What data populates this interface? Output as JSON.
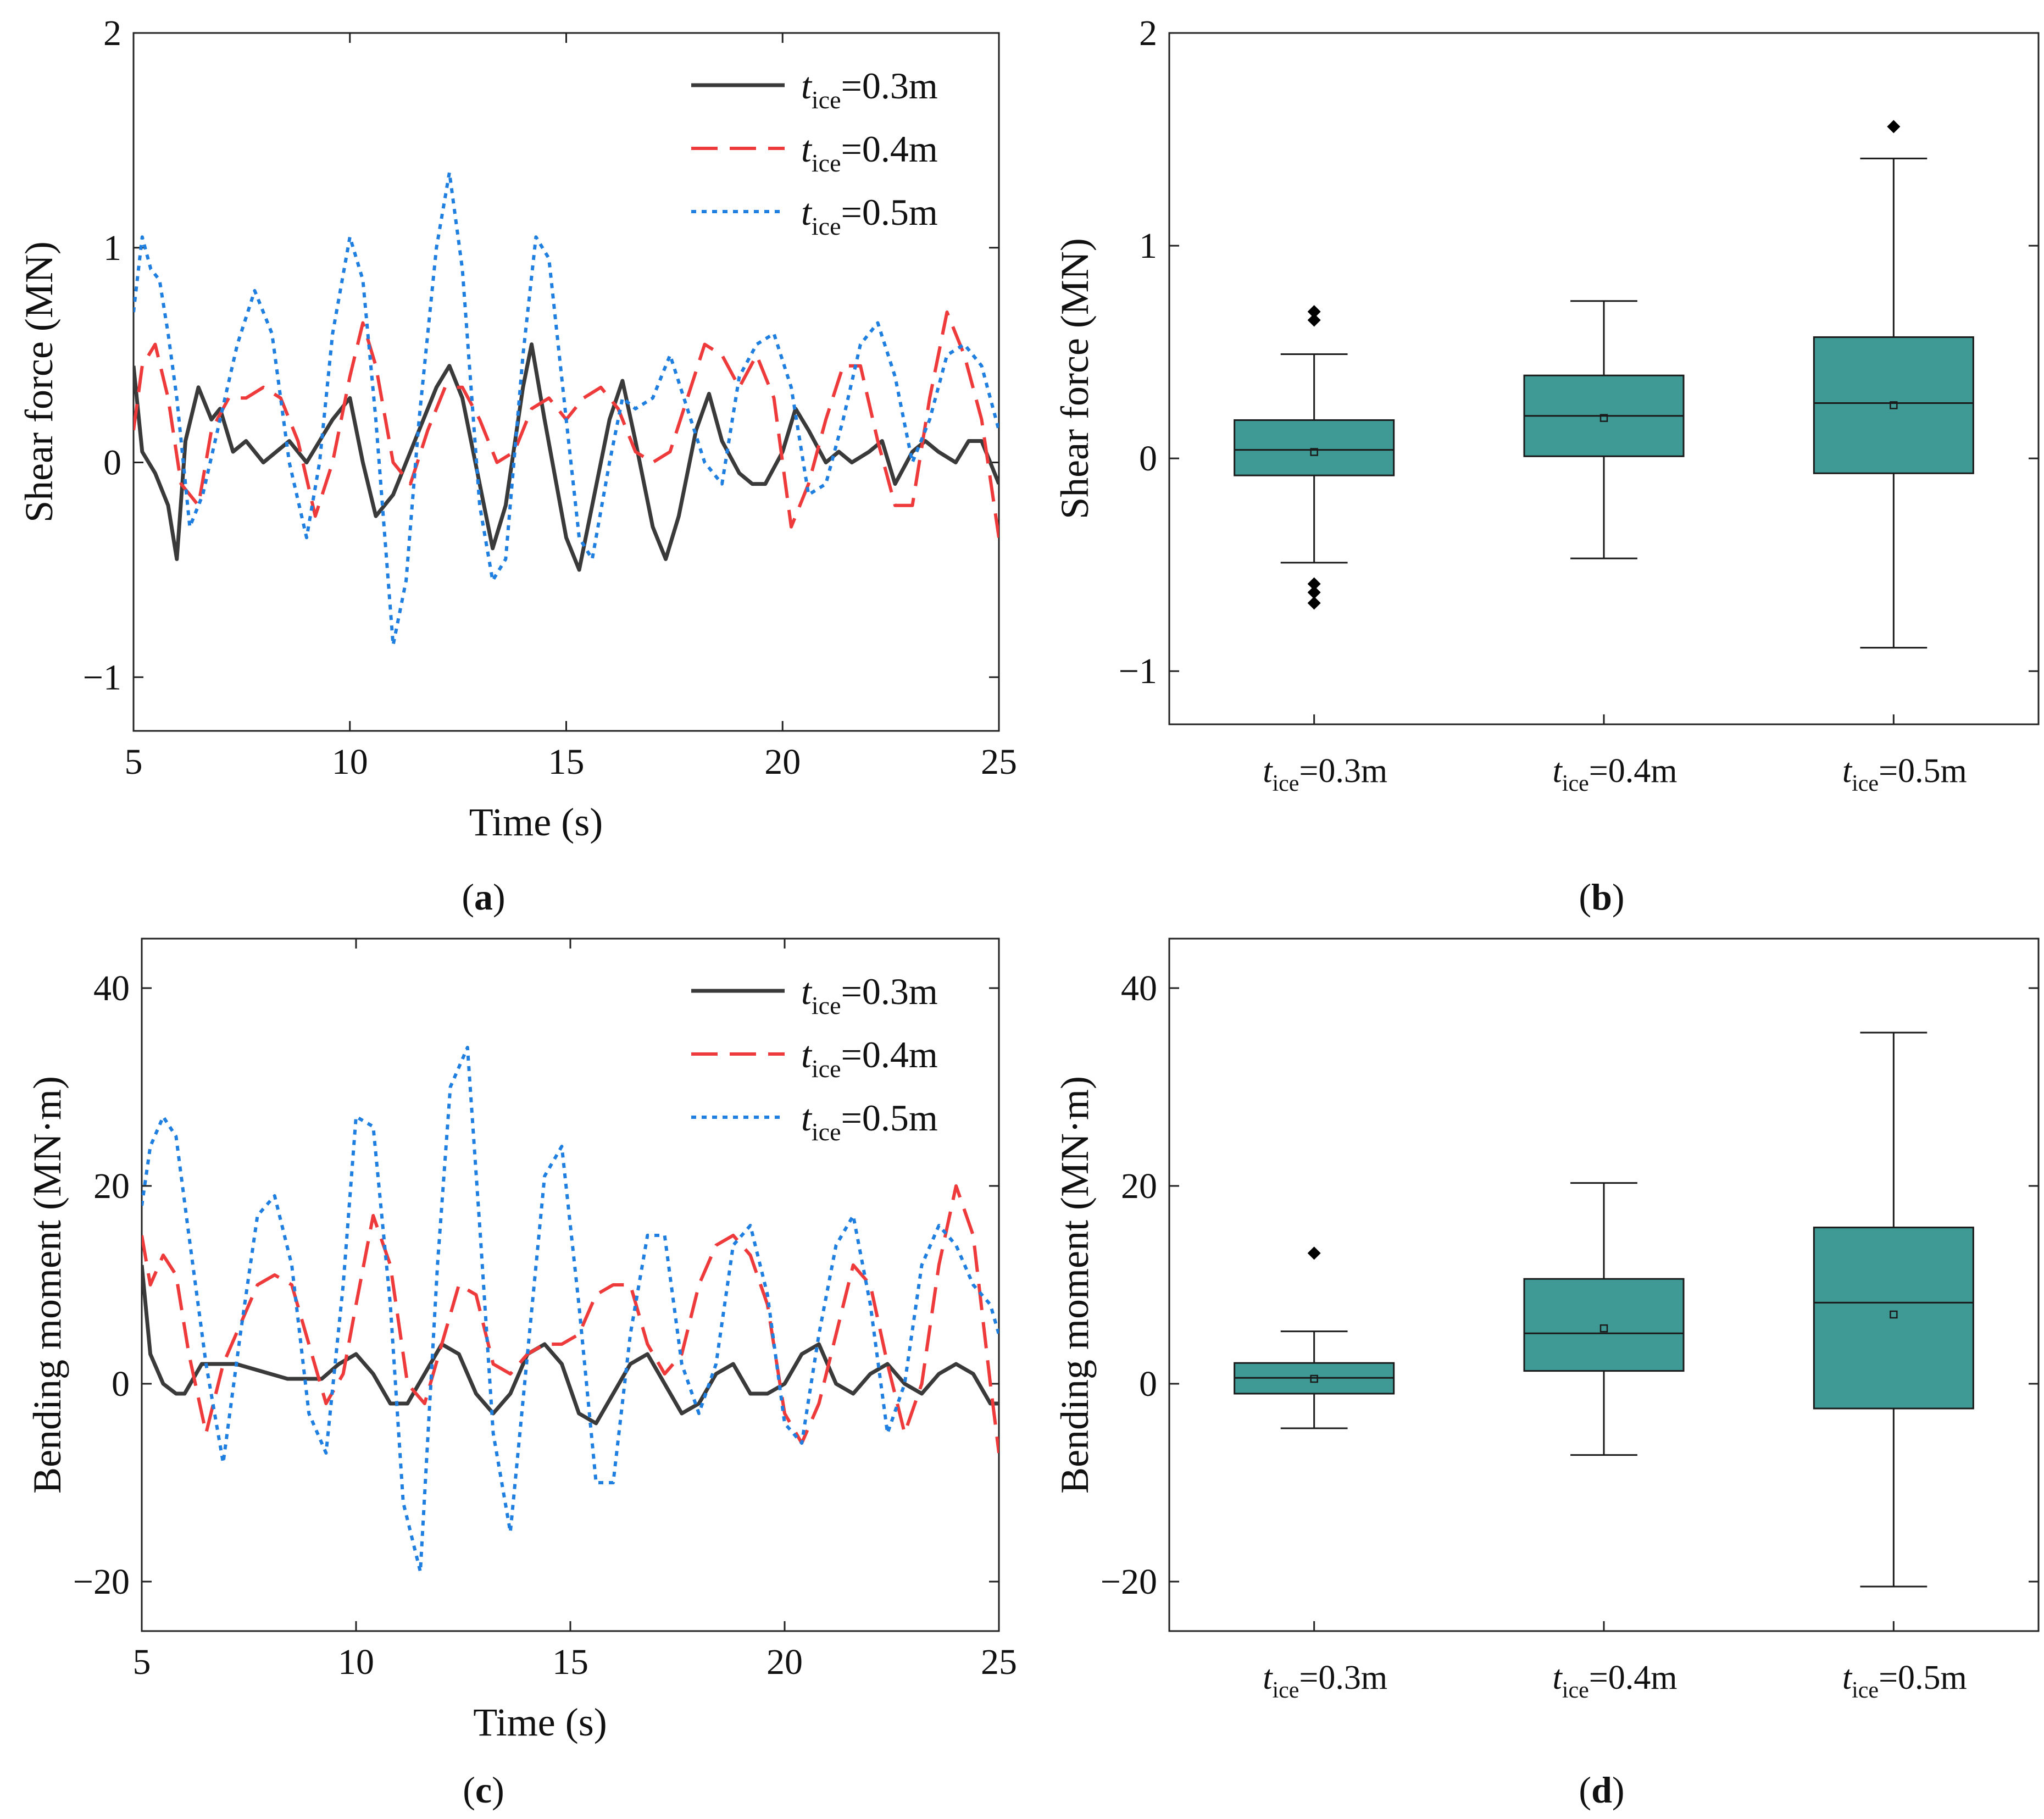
{
  "figure": {
    "panel_labels": [
      {
        "open": "(",
        "letter": "a",
        "close": ")"
      },
      {
        "open": "(",
        "letter": "b",
        "close": ")"
      },
      {
        "open": "(",
        "letter": "c",
        "close": ")"
      },
      {
        "open": "(",
        "letter": "d",
        "close": ")"
      }
    ]
  },
  "colors": {
    "series": [
      "#3a3a3a",
      "#ee3a3a",
      "#1f7fe0"
    ],
    "box_fill": "#3f9a96",
    "box_stroke": "#1a1a1a",
    "axis": "#222222"
  },
  "chart_data": [
    {
      "id": "a",
      "type": "line",
      "xlabel": "Time (s)",
      "ylabel": "Shear force (MN)",
      "xlim": [
        5,
        25
      ],
      "ylim": [
        -1.25,
        2
      ],
      "xticks": [
        5,
        10,
        15,
        20,
        25
      ],
      "xtick_labels": [
        "5",
        "10",
        "15",
        "20",
        "25"
      ],
      "yticks": [
        -1,
        0,
        1,
        2
      ],
      "ytick_labels": [
        "−1",
        "0",
        "1",
        "2"
      ],
      "legend_position": "top-right",
      "series": [
        {
          "legend_var": "t",
          "legend_sub": "ice",
          "legend_value": "=0.3m",
          "style": "solid",
          "x": [
            5,
            5.2,
            5.5,
            5.8,
            6.0,
            6.2,
            6.5,
            6.8,
            7.0,
            7.3,
            7.6,
            8.0,
            8.3,
            8.6,
            9.0,
            9.3,
            9.6,
            10.0,
            10.3,
            10.6,
            11.0,
            11.3,
            11.6,
            12.0,
            12.3,
            12.6,
            13.0,
            13.3,
            13.6,
            14.0,
            14.2,
            14.5,
            15.0,
            15.3,
            15.6,
            16.0,
            16.3,
            16.6,
            17.0,
            17.3,
            17.6,
            18.0,
            18.3,
            18.6,
            19.0,
            19.3,
            19.6,
            20.0,
            20.3,
            20.6,
            21.0,
            21.3,
            21.6,
            22.0,
            22.3,
            22.6,
            23.0,
            23.3,
            23.6,
            24.0,
            24.3,
            24.6,
            25.0
          ],
          "y": [
            0.45,
            0.05,
            -0.05,
            -0.2,
            -0.45,
            0.1,
            0.35,
            0.2,
            0.25,
            0.05,
            0.1,
            0.0,
            0.05,
            0.1,
            0.0,
            0.1,
            0.2,
            0.3,
            0.0,
            -0.25,
            -0.15,
            0.0,
            0.15,
            0.35,
            0.45,
            0.3,
            -0.1,
            -0.4,
            -0.2,
            0.35,
            0.55,
            0.2,
            -0.35,
            -0.5,
            -0.2,
            0.2,
            0.38,
            0.1,
            -0.3,
            -0.45,
            -0.25,
            0.15,
            0.32,
            0.1,
            -0.05,
            -0.1,
            -0.1,
            0.05,
            0.25,
            0.15,
            0.0,
            0.05,
            0.0,
            0.05,
            0.1,
            -0.1,
            0.05,
            0.1,
            0.05,
            0.0,
            0.1,
            0.1,
            -0.1
          ]
        },
        {
          "legend_var": "t",
          "legend_sub": "ice",
          "legend_value": "=0.4m",
          "style": "dashed",
          "x": [
            5,
            5.2,
            5.5,
            5.8,
            6.1,
            6.5,
            6.8,
            7.2,
            7.6,
            8.0,
            8.4,
            8.8,
            9.2,
            9.6,
            10.0,
            10.3,
            10.6,
            11.0,
            11.4,
            11.8,
            12.2,
            12.6,
            13.0,
            13.4,
            13.8,
            14.2,
            14.6,
            15.0,
            15.4,
            15.8,
            16.2,
            16.6,
            17.0,
            17.4,
            17.8,
            18.2,
            18.6,
            19.0,
            19.4,
            19.8,
            20.2,
            20.6,
            21.0,
            21.4,
            21.8,
            22.2,
            22.6,
            23.0,
            23.4,
            23.8,
            24.2,
            24.6,
            25.0
          ],
          "y": [
            0.15,
            0.45,
            0.55,
            0.3,
            -0.1,
            -0.2,
            0.15,
            0.3,
            0.3,
            0.35,
            0.3,
            0.1,
            -0.25,
            0.0,
            0.4,
            0.65,
            0.45,
            0.0,
            -0.1,
            0.15,
            0.35,
            0.35,
            0.2,
            0.0,
            0.05,
            0.25,
            0.3,
            0.2,
            0.3,
            0.35,
            0.25,
            0.05,
            0.0,
            0.05,
            0.3,
            0.55,
            0.5,
            0.35,
            0.5,
            0.3,
            -0.3,
            -0.1,
            0.2,
            0.45,
            0.45,
            0.1,
            -0.2,
            -0.2,
            0.3,
            0.7,
            0.5,
            0.2,
            -0.35
          ]
        },
        {
          "legend_var": "t",
          "legend_sub": "ice",
          "legend_value": "=0.5m",
          "style": "dotted",
          "x": [
            5,
            5.2,
            5.4,
            5.6,
            5.8,
            6.0,
            6.3,
            6.6,
            7.0,
            7.4,
            7.8,
            8.2,
            8.6,
            9.0,
            9.3,
            9.6,
            10.0,
            10.3,
            10.6,
            11.0,
            11.3,
            11.6,
            12.0,
            12.3,
            12.6,
            13.0,
            13.3,
            13.6,
            14.0,
            14.3,
            14.6,
            15.0,
            15.3,
            15.6,
            16.0,
            16.3,
            16.6,
            17.0,
            17.4,
            17.8,
            18.2,
            18.6,
            19.0,
            19.4,
            19.8,
            20.2,
            20.6,
            21.0,
            21.4,
            21.8,
            22.2,
            22.6,
            23.0,
            23.4,
            23.8,
            24.2,
            24.6,
            25.0
          ],
          "y": [
            0.7,
            1.05,
            0.9,
            0.85,
            0.6,
            0.3,
            -0.3,
            -0.15,
            0.2,
            0.55,
            0.8,
            0.6,
            0.0,
            -0.35,
            0.0,
            0.6,
            1.05,
            0.85,
            0.2,
            -0.85,
            -0.55,
            0.2,
            1.0,
            1.35,
            0.9,
            -0.2,
            -0.55,
            -0.45,
            0.5,
            1.05,
            0.95,
            0.2,
            -0.35,
            -0.45,
            0.0,
            0.3,
            0.25,
            0.3,
            0.5,
            0.25,
            0.0,
            -0.1,
            0.4,
            0.55,
            0.6,
            0.35,
            -0.15,
            -0.1,
            0.2,
            0.55,
            0.65,
            0.4,
            0.0,
            0.2,
            0.5,
            0.55,
            0.45,
            0.15
          ]
        }
      ]
    },
    {
      "id": "b",
      "type": "box",
      "ylabel": "Shear force (MN)",
      "ylim": [
        -1.25,
        2
      ],
      "yticks": [
        -1,
        0,
        1,
        2
      ],
      "ytick_labels": [
        "−1",
        "0",
        "1",
        "2"
      ],
      "categories": [
        {
          "var": "t",
          "sub": "ice",
          "value": "=0.3m"
        },
        {
          "var": "t",
          "sub": "ice",
          "value": "=0.4m"
        },
        {
          "var": "t",
          "sub": "ice",
          "value": "=0.5m"
        }
      ],
      "boxes": [
        {
          "whisker_low": -0.49,
          "q1": -0.08,
          "median": 0.04,
          "mean": 0.03,
          "q3": 0.18,
          "whisker_high": 0.49,
          "outliers": [
            0.69,
            0.65,
            -0.59,
            -0.63,
            -0.68
          ]
        },
        {
          "whisker_low": -0.47,
          "q1": 0.01,
          "median": 0.2,
          "mean": 0.19,
          "q3": 0.39,
          "whisker_high": 0.74,
          "outliers": []
        },
        {
          "whisker_low": -0.89,
          "q1": -0.07,
          "median": 0.26,
          "mean": 0.25,
          "q3": 0.57,
          "whisker_high": 1.41,
          "outliers": [
            1.56
          ]
        }
      ]
    },
    {
      "id": "c",
      "type": "line",
      "xlabel": "Time (s)",
      "ylabel": "Bending moment (MN·m)",
      "xlim": [
        5,
        25
      ],
      "ylim": [
        -25,
        45
      ],
      "xticks": [
        5,
        10,
        15,
        20,
        25
      ],
      "xtick_labels": [
        "5",
        "10",
        "15",
        "20",
        "25"
      ],
      "yticks": [
        -20,
        0,
        20,
        40
      ],
      "ytick_labels": [
        "−20",
        "0",
        "20",
        "40"
      ],
      "legend_position": "top-right",
      "series": [
        {
          "legend_var": "t",
          "legend_sub": "ice",
          "legend_value": "=0.3m",
          "style": "solid",
          "x": [
            5,
            5.2,
            5.5,
            5.8,
            6.0,
            6.4,
            6.8,
            7.2,
            7.6,
            8.0,
            8.4,
            8.8,
            9.2,
            9.6,
            10.0,
            10.4,
            10.8,
            11.2,
            11.6,
            12.0,
            12.4,
            12.8,
            13.2,
            13.6,
            14.0,
            14.4,
            14.8,
            15.2,
            15.6,
            16.0,
            16.4,
            16.8,
            17.2,
            17.6,
            18.0,
            18.4,
            18.8,
            19.2,
            19.6,
            20.0,
            20.4,
            20.8,
            21.2,
            21.6,
            22.0,
            22.4,
            22.8,
            23.2,
            23.6,
            24.0,
            24.4,
            24.8,
            25.0
          ],
          "y": [
            12,
            3,
            0,
            -1,
            -1,
            2,
            2,
            2,
            1.5,
            1,
            0.5,
            0.5,
            0.5,
            2,
            3,
            1,
            -2,
            -2,
            1,
            4,
            3,
            -1,
            -3,
            -1,
            3,
            4,
            2,
            -3,
            -4,
            -1,
            2,
            3,
            0,
            -3,
            -2,
            1,
            2,
            -1,
            -1,
            0,
            3,
            4,
            0,
            -1,
            1,
            2,
            0,
            -1,
            1,
            2,
            1,
            -2,
            -2
          ]
        },
        {
          "legend_var": "t",
          "legend_sub": "ice",
          "legend_value": "=0.4m",
          "style": "dashed",
          "x": [
            5,
            5.2,
            5.5,
            5.8,
            6.1,
            6.5,
            6.9,
            7.3,
            7.7,
            8.1,
            8.5,
            8.9,
            9.3,
            9.7,
            10.0,
            10.4,
            10.8,
            11.2,
            11.6,
            12.0,
            12.4,
            12.8,
            13.2,
            13.6,
            14.0,
            14.4,
            14.8,
            15.2,
            15.6,
            16.0,
            16.4,
            16.8,
            17.2,
            17.6,
            18.0,
            18.4,
            18.8,
            19.2,
            19.6,
            20.0,
            20.4,
            20.8,
            21.2,
            21.6,
            22.0,
            22.4,
            22.8,
            23.2,
            23.6,
            24.0,
            24.4,
            24.8,
            25.0
          ],
          "y": [
            15,
            10,
            13,
            11,
            3,
            -5,
            2,
            6,
            10,
            11,
            10,
            4,
            -2,
            1,
            8,
            17,
            12,
            0,
            -2,
            4,
            10,
            9,
            2,
            1,
            3,
            4,
            4,
            5,
            9,
            10,
            10,
            4,
            1,
            3,
            10,
            14,
            15,
            13,
            8,
            -3,
            -6,
            -2,
            5,
            12,
            10,
            2,
            -5,
            0,
            12,
            20,
            15,
            0,
            -7
          ]
        },
        {
          "legend_var": "t",
          "legend_sub": "ice",
          "legend_value": "=0.5m",
          "style": "dotted",
          "x": [
            5,
            5.2,
            5.5,
            5.8,
            6.1,
            6.5,
            6.9,
            7.3,
            7.7,
            8.1,
            8.5,
            8.9,
            9.3,
            9.7,
            10.0,
            10.4,
            10.8,
            11.1,
            11.5,
            11.9,
            12.2,
            12.6,
            12.9,
            13.2,
            13.6,
            14.0,
            14.4,
            14.8,
            15.2,
            15.6,
            16.0,
            16.4,
            16.8,
            17.2,
            17.6,
            18.0,
            18.4,
            18.8,
            19.2,
            19.6,
            20.0,
            20.4,
            20.8,
            21.2,
            21.6,
            22.0,
            22.4,
            22.8,
            23.2,
            23.6,
            24.0,
            24.4,
            24.8,
            25.0
          ],
          "y": [
            18,
            24,
            27,
            25,
            15,
            2,
            -8,
            5,
            17,
            19,
            12,
            -3,
            -7,
            10,
            27,
            26,
            8,
            -12,
            -19,
            12,
            30,
            34,
            15,
            -5,
            -15,
            3,
            21,
            24,
            8,
            -10,
            -10,
            5,
            15,
            15,
            2,
            -3,
            2,
            14,
            16,
            9,
            -4,
            -6,
            5,
            14,
            17,
            8,
            -5,
            0,
            12,
            16,
            14,
            10,
            8,
            5
          ]
        }
      ]
    },
    {
      "id": "d",
      "type": "box",
      "ylabel": "Bending moment (MN·m)",
      "ylim": [
        -25,
        45
      ],
      "yticks": [
        -20,
        0,
        20,
        40
      ],
      "ytick_labels": [
        "−20",
        "0",
        "20",
        "40"
      ],
      "categories": [
        {
          "var": "t",
          "sub": "ice",
          "value": "=0.3m"
        },
        {
          "var": "t",
          "sub": "ice",
          "value": "=0.4m"
        },
        {
          "var": "t",
          "sub": "ice",
          "value": "=0.5m"
        }
      ],
      "boxes": [
        {
          "whisker_low": -4.5,
          "q1": -1,
          "median": 0.6,
          "mean": 0.5,
          "q3": 2.1,
          "whisker_high": 5.3,
          "outliers": [
            13.2
          ]
        },
        {
          "whisker_low": -7.2,
          "q1": 1.3,
          "median": 5.1,
          "mean": 5.6,
          "q3": 10.6,
          "whisker_high": 20.3,
          "outliers": []
        },
        {
          "whisker_low": -20.5,
          "q1": -2.5,
          "median": 8.2,
          "mean": 7,
          "q3": 15.8,
          "whisker_high": 35.5,
          "outliers": []
        }
      ]
    }
  ]
}
